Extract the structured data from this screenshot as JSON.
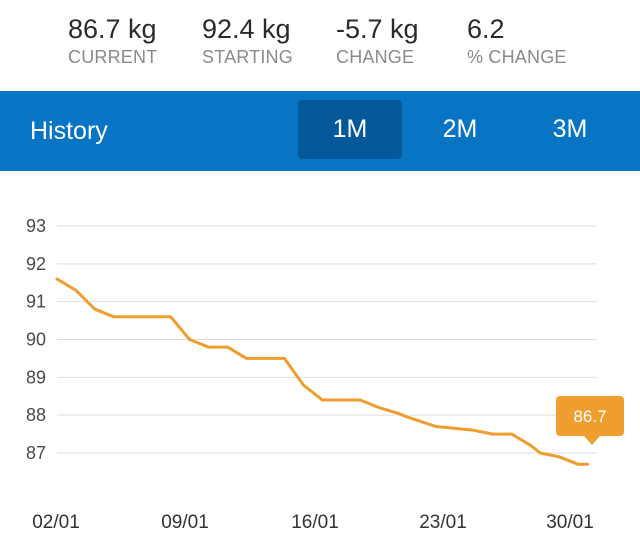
{
  "stats": [
    {
      "value": "86.7 kg",
      "label": "CURRENT"
    },
    {
      "value": "92.4 kg",
      "label": "STARTING"
    },
    {
      "value": "-5.7 kg",
      "label": "CHANGE"
    },
    {
      "value": "6.2",
      "label": "% CHANGE"
    }
  ],
  "history": {
    "title": "History",
    "tabs": [
      "1M",
      "2M",
      "3M"
    ],
    "active_tab": "1M"
  },
  "colors": {
    "accent_bar": "#0775c4",
    "active_tab": "#05589a",
    "line": "#ee9d2e",
    "tooltip": "#ee9d2e"
  },
  "chart_data": {
    "type": "line",
    "ylim": [
      86.5,
      93
    ],
    "y_ticks": [
      93,
      92,
      91,
      90,
      89,
      88,
      87
    ],
    "x_ticks": [
      "02/01",
      "09/01",
      "16/01",
      "23/01",
      "30/01"
    ],
    "grid": true,
    "x": [
      1,
      3,
      5,
      7,
      9,
      11,
      13,
      15,
      17,
      19,
      21,
      23,
      25,
      27,
      29,
      31,
      33,
      35,
      37,
      38,
      41,
      43,
      45,
      47,
      49,
      51,
      52,
      54,
      56,
      57
    ],
    "values": [
      91.6,
      91.3,
      90.8,
      90.6,
      90.6,
      90.6,
      90.6,
      90.0,
      89.8,
      89.8,
      89.5,
      89.5,
      89.5,
      88.8,
      88.4,
      88.4,
      88.4,
      88.2,
      88.05,
      87.95,
      87.7,
      87.65,
      87.6,
      87.5,
      87.5,
      87.2,
      87.0,
      86.9,
      86.7,
      86.7
    ],
    "tooltip": "86.7"
  }
}
